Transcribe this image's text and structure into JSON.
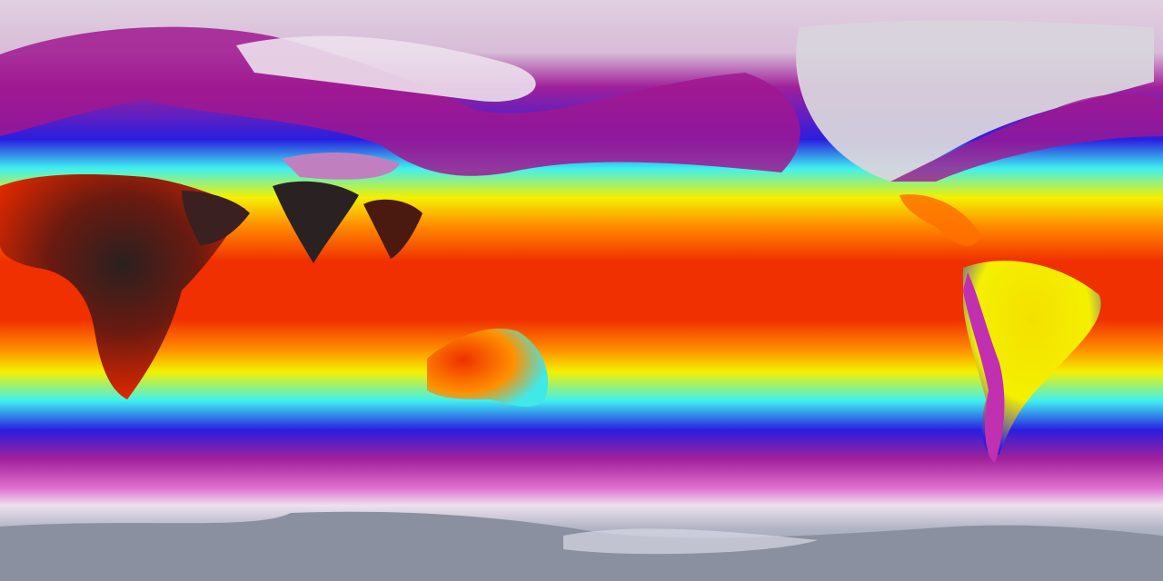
{
  "map": {
    "projection": "equirectangular",
    "variable_colormap": [
      {
        "band": "polar-north",
        "color": "#e4d6e4"
      },
      {
        "band": "cold",
        "color": "#a0209a"
      },
      {
        "band": "cool",
        "color": "#2a1ee0"
      },
      {
        "band": "mild",
        "color": "#3ff0f0"
      },
      {
        "band": "warm",
        "color": "#f4f000"
      },
      {
        "band": "hot",
        "color": "#ff8a00"
      },
      {
        "band": "very-hot",
        "color": "#f03000"
      },
      {
        "band": "extreme",
        "color": "#2a2020"
      },
      {
        "band": "polar-south",
        "color": "#8a90a0"
      }
    ]
  }
}
